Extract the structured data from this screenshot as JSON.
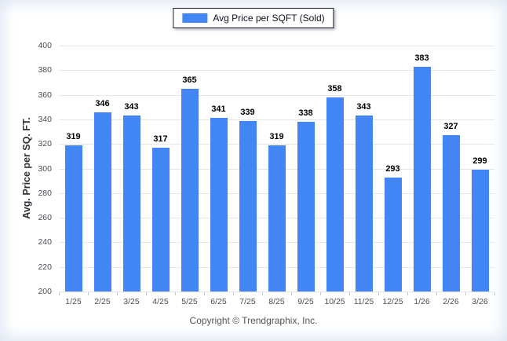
{
  "chart_data": {
    "type": "bar",
    "title": "",
    "legend": "Avg Price per SQFT (Sold)",
    "categories": [
      "1/25",
      "2/25",
      "3/25",
      "4/25",
      "5/25",
      "6/25",
      "7/25",
      "8/25",
      "9/25",
      "10/25",
      "11/25",
      "12/25",
      "1/26",
      "2/26",
      "3/26"
    ],
    "values": [
      319,
      346,
      343,
      317,
      365,
      341,
      339,
      319,
      338,
      358,
      343,
      293,
      383,
      327,
      299
    ],
    "xlabel": "",
    "ylabel": "Avg. Price per SQ. FT.",
    "ylim": [
      200,
      400
    ],
    "ytick_step": 20,
    "grid": true,
    "legend_position": "top-center"
  },
  "footer": {
    "copyright": "Copyright © Trendgraphix, Inc."
  },
  "colors": {
    "bar": "#4285f4",
    "grid": "#e4e6ea",
    "axis_tick": "#c9ccd2",
    "tick_label": "#4a4e57",
    "value_label": "#000000",
    "footer_text": "#54565a",
    "legend_border": "#1c1c2e"
  }
}
